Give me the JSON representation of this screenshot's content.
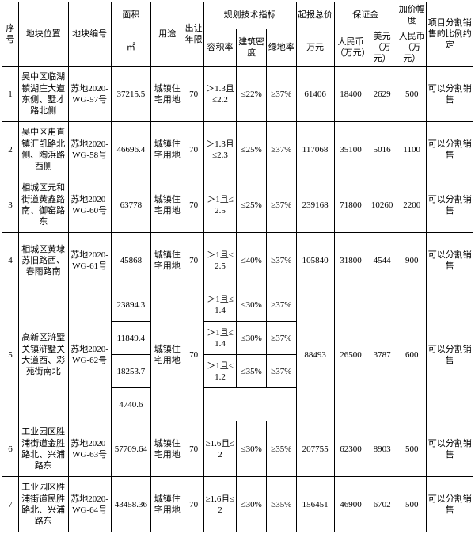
{
  "headers": {
    "seq": "序号",
    "loc": "地块位置",
    "code": "地块编号",
    "area": "面积",
    "area_unit": "㎡",
    "use": "用途",
    "year": "出让年限",
    "tech_group": "规划技术指标",
    "rjl": "容积率",
    "dens": "建筑密度",
    "green": "绿地率",
    "start_price": "起报总价",
    "start_price_unit": "万元",
    "deposit": "保证金",
    "rmb": "人民币（万元）",
    "usd": "美元（万元）",
    "step": "加价幅度",
    "step_unit": "人民币（万元）",
    "note": "项目分割销售的比例约定"
  },
  "rows": [
    {
      "seq": "1",
      "loc": "吴中区临湖镇湖庄大道东侧、墅才路北侧",
      "code": "苏地2020-WG-57号",
      "area": "37215.5",
      "use": "城镇住宅用地",
      "year": "70",
      "rjl": "＞1.3且≤2.2",
      "dens": "≤22%",
      "green": "≥37%",
      "price": "61406",
      "rmb": "18400",
      "usd": "2629",
      "step": "500",
      "note": "可以分割销售"
    },
    {
      "seq": "2",
      "loc": "吴中区甪直镇汇凯路北侧、陶浜路西侧",
      "code": "苏地2020-WG-58号",
      "area": "46696.4",
      "use": "城镇住宅用地",
      "year": "70",
      "rjl": "＞1.3且≤2.3",
      "dens": "≤25%",
      "green": "≥37%",
      "price": "117068",
      "rmb": "35100",
      "usd": "5016",
      "step": "1100",
      "note": "可以分割销售"
    },
    {
      "seq": "3",
      "loc": "相城区元和街道黄鑫路南、御窑路东",
      "code": "苏地2020-WG-60号",
      "area": "63778",
      "use": "城镇住宅用地",
      "year": "70",
      "rjl": "＞1且≤2.5",
      "dens": "≤25%",
      "green": "≥37%",
      "price": "239168",
      "rmb": "71800",
      "usd": "10260",
      "step": "2200",
      "note": "可以分割销售"
    },
    {
      "seq": "4",
      "loc": "相城区黄埭苏旧路西、春雨路南",
      "code": "苏地2020-WG-61号",
      "area": "45868",
      "use": "城镇住宅用地",
      "year": "70",
      "rjl": "＞1且≤2.5",
      "dens": "≤40%",
      "green": "≥37%",
      "price": "105840",
      "rmb": "31800",
      "usd": "4544",
      "step": "900",
      "note": "可以分割销售"
    },
    {
      "seq": "5",
      "loc": "高新区浒墅关镇浒墅关大道西、彩苑街南北",
      "code": "苏地2020-WG-62号",
      "subareas": [
        {
          "area": "23894.3",
          "rjl": "＞1且≤1.4",
          "dens": "≤30%",
          "green": "≥37%"
        },
        {
          "area": "11849.4",
          "rjl": "＞1且≤1.4",
          "dens": "≤30%",
          "green": "≥37%"
        },
        {
          "area": "18253.7",
          "rjl": "＞1且≤1.2",
          "dens": "≤35%",
          "green": "≥37%"
        },
        {
          "area": "4740.6",
          "rjl": "",
          "dens": "",
          "green": ""
        }
      ],
      "use": "城镇住宅用地",
      "year": "70",
      "price": "88493",
      "rmb": "26500",
      "usd": "3787",
      "step": "600",
      "note": "可以分割销售"
    },
    {
      "seq": "6",
      "loc": "工业园区胜浦街道金胜路北、兴浦路东",
      "code": "苏地2020-WG-63号",
      "area": "57709.64",
      "use": "城镇住宅用地",
      "year": "70",
      "rjl": "≥1.6且≤2",
      "dens": "≤30%",
      "green": "≥35%",
      "price": "207755",
      "rmb": "62300",
      "usd": "8903",
      "step": "500",
      "note": "可以分割销售"
    },
    {
      "seq": "7",
      "loc": "工业园区胜浦街道民胜路北、兴浦路东",
      "code": "苏地2020-WG-64号",
      "area": "43458.36",
      "use": "城镇住宅用地",
      "year": "70",
      "rjl": "≥1.6且≤2",
      "dens": "≤30%",
      "green": "≥35%",
      "price": "156451",
      "rmb": "46900",
      "usd": "6702",
      "step": "500",
      "note": "可以分割销售"
    }
  ]
}
